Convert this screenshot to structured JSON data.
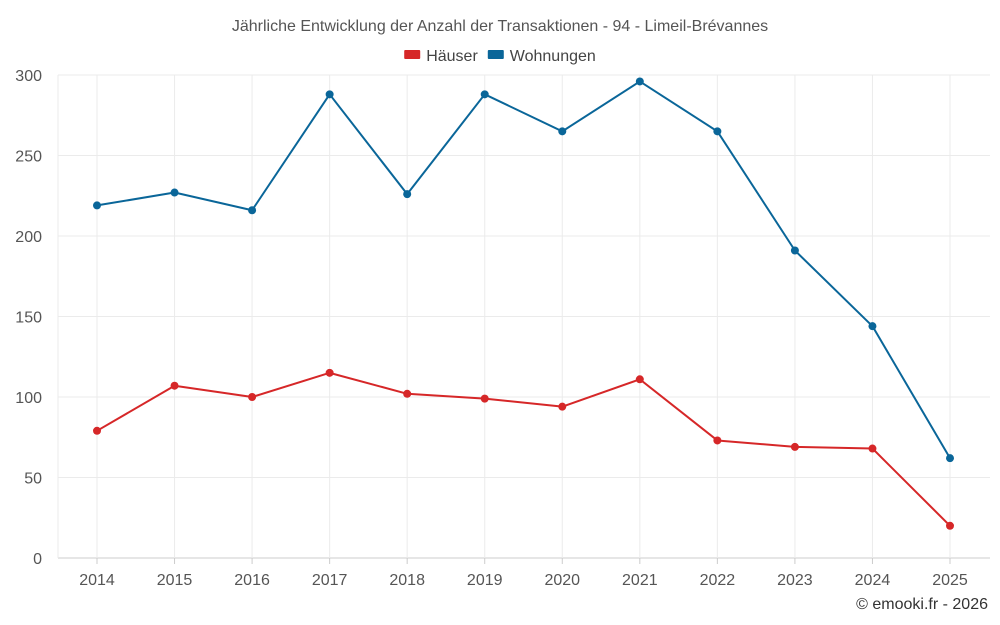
{
  "chart_data": {
    "type": "line",
    "title": "Jährliche Entwicklung der Anzahl der Transaktionen - 94 - Limeil-Brévannes",
    "xlabel": "",
    "ylabel": "",
    "categories": [
      "2014",
      "2015",
      "2016",
      "2017",
      "2018",
      "2019",
      "2020",
      "2021",
      "2022",
      "2023",
      "2024",
      "2025"
    ],
    "y_ticks": [
      0,
      50,
      100,
      150,
      200,
      250,
      300
    ],
    "ylim": [
      0,
      300
    ],
    "grid": true,
    "legend_position": "top-center",
    "series": [
      {
        "name": "Häuser",
        "color": "#d62728",
        "values": [
          79,
          107,
          100,
          115,
          102,
          99,
          94,
          111,
          73,
          69,
          68,
          20
        ]
      },
      {
        "name": "Wohnungen",
        "color": "#0a6699",
        "values": [
          219,
          227,
          216,
          288,
          226,
          288,
          265,
          296,
          265,
          191,
          144,
          62
        ]
      }
    ]
  },
  "credit": "© emooki.fr - 2026"
}
